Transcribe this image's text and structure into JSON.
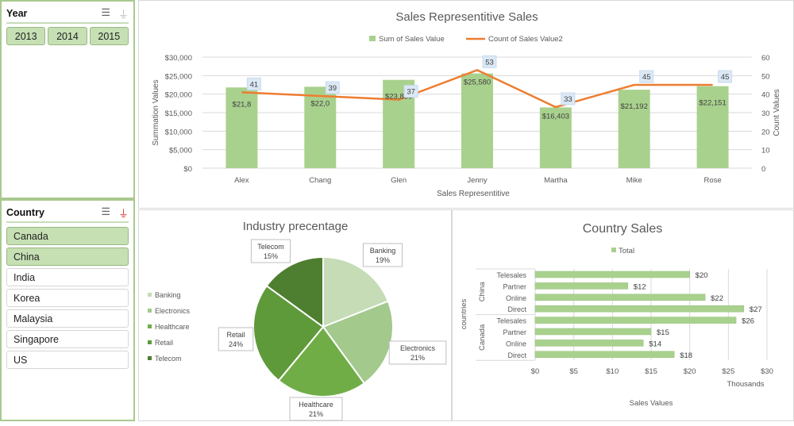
{
  "slicers": {
    "year": {
      "title": "Year",
      "items": [
        "2013",
        "2014",
        "2015"
      ],
      "selected": [
        "2013",
        "2014",
        "2015"
      ]
    },
    "country": {
      "title": "Country",
      "items": [
        "Canada",
        "China",
        "India",
        "Korea",
        "Malaysia",
        "Singapore",
        "US"
      ],
      "selected": [
        "Canada",
        "China"
      ]
    },
    "icons": [
      "multi-select-icon",
      "clear-filter-icon"
    ]
  },
  "chart_data": [
    {
      "type": "bar+line",
      "title": "Sales Representitive Sales",
      "xlabel": "Sales Representitive",
      "ylabel": "Summation Values",
      "y2label": "Count Values",
      "categories": [
        "Alex",
        "Chang",
        "Glen",
        "Jenny",
        "Martha",
        "Mike",
        "Rose"
      ],
      "ylim": [
        0,
        30000
      ],
      "yticks": [
        "$0",
        "$5,000",
        "$10,000",
        "$15,000",
        "$20,000",
        "$25,000",
        "$30,000"
      ],
      "y2lim": [
        0,
        60
      ],
      "y2ticks": [
        "0",
        "10",
        "20",
        "30",
        "40",
        "50",
        "60"
      ],
      "legend": "top",
      "grid": true,
      "series": [
        {
          "name": "Sum of Sales Value",
          "kind": "bar",
          "color": "#a9d18e",
          "values": [
            21800,
            22000,
            23856,
            25580,
            16403,
            21192,
            22151
          ],
          "labels": [
            "$21,8",
            "$22,0",
            "$23,856",
            "$25,580",
            "$16,403",
            "$21,192",
            "$22,151"
          ]
        },
        {
          "name": "Count of Sales Value2",
          "kind": "line",
          "axis": "right",
          "color": "#ed7d31",
          "values": [
            41,
            39,
            37,
            53,
            33,
            45,
            45
          ],
          "labels": [
            "41",
            "39",
            "37",
            "53",
            "33",
            "45",
            "45"
          ]
        }
      ]
    },
    {
      "type": "pie",
      "title": "Industry precentage",
      "legend": "left",
      "categories": [
        "Banking",
        "Electronics",
        "Healthcare",
        "Retail",
        "Telecom"
      ],
      "values": [
        19,
        21,
        21,
        24,
        15
      ],
      "labels": [
        "19%",
        "21%",
        "21%",
        "24%",
        "15%"
      ],
      "colors": [
        "#c5dcb6",
        "#a3c98c",
        "#70ad47",
        "#5f9a3a",
        "#4e7e2f"
      ]
    },
    {
      "type": "bar",
      "orientation": "horizontal",
      "title": "Country Sales",
      "xlabel": "Sales Values",
      "ylabel": "countries",
      "unit_label": "Thousands",
      "legend": "top",
      "grid": true,
      "xlim": [
        0,
        30
      ],
      "xticks": [
        "$0",
        "$5",
        "$10",
        "$15",
        "$20",
        "$25",
        "$30"
      ],
      "groups": [
        {
          "name": "China",
          "categories": [
            "Telesales",
            "Partner",
            "Online",
            "Direct"
          ],
          "values": [
            20,
            12,
            22,
            27
          ],
          "labels": [
            "$20",
            "$12",
            "$22",
            "$27"
          ]
        },
        {
          "name": "Canada",
          "categories": [
            "Telesales",
            "Partner",
            "Online",
            "Direct"
          ],
          "values": [
            26,
            15,
            14,
            18
          ],
          "labels": [
            "$26",
            "$15",
            "$14",
            "$18"
          ]
        }
      ],
      "series": [
        {
          "name": "Total",
          "color": "#a9d18e"
        }
      ]
    }
  ]
}
